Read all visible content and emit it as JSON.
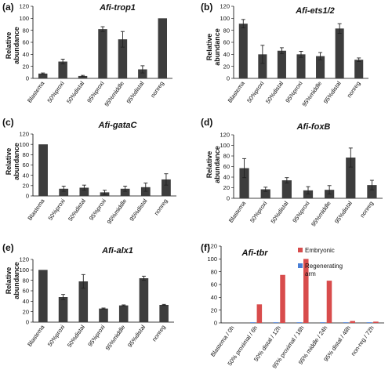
{
  "colors": {
    "bar": "#3d3d3d",
    "embryonic": "#d84c4c",
    "regenerating": "#4a7fd6"
  },
  "chart_data": [
    {
      "tag": "(a)",
      "title": "Afi-trop1",
      "type": "bar",
      "ylabel": "Relative abundance",
      "ylim": [
        0,
        120
      ],
      "yticks": [
        0,
        20,
        40,
        60,
        80,
        100,
        120
      ],
      "categories": [
        "Blastema",
        "50%proxi",
        "50%distal",
        "95%proxi",
        "95%middle",
        "95%distal",
        "nonreg"
      ],
      "series": [
        {
          "values": [
            8,
            28,
            4,
            82,
            65,
            15,
            100
          ],
          "errors": [
            1,
            4,
            1,
            4,
            13,
            6,
            0
          ]
        }
      ]
    },
    {
      "tag": "(b)",
      "title": "Afi-ets1/2",
      "type": "bar",
      "ylabel": "Relative abundance",
      "ylim": [
        0,
        120
      ],
      "yticks": [
        0,
        20,
        40,
        60,
        80,
        100,
        120
      ],
      "categories": [
        "Blastema",
        "50%proxi",
        "50%distal",
        "95%proxi",
        "95%middle",
        "95%distal",
        "nonreg"
      ],
      "series": [
        {
          "values": [
            91,
            40,
            46,
            40,
            37,
            83,
            31
          ],
          "errors": [
            7,
            15,
            5,
            5,
            6,
            8,
            3
          ]
        }
      ]
    },
    {
      "tag": "(c)",
      "title": "Afi-gataC",
      "type": "bar",
      "ylabel": "Relative abundance",
      "ylim": [
        0,
        120
      ],
      "yticks": [
        0,
        20,
        40,
        60,
        80,
        100,
        120
      ],
      "categories": [
        "Blastema",
        "50%proxi",
        "50%distal",
        "95%proxi",
        "95%middle",
        "95%distal",
        "nonreg"
      ],
      "series": [
        {
          "values": [
            100,
            14,
            16,
            7,
            14,
            17,
            32
          ],
          "errors": [
            0,
            5,
            5,
            4,
            5,
            8,
            11
          ]
        }
      ]
    },
    {
      "tag": "(d)",
      "title": "Afi-foxB",
      "type": "bar",
      "ylabel": "Relative abundance",
      "ylim": [
        0,
        120
      ],
      "yticks": [
        0,
        20,
        40,
        60,
        80,
        100,
        120
      ],
      "categories": [
        "Blastema",
        "50%proxi",
        "50%distal",
        "95%proxi",
        "95%middle",
        "95%distal",
        "nonreg"
      ],
      "series": [
        {
          "values": [
            57,
            17,
            34,
            15,
            16,
            77,
            25
          ],
          "errors": [
            18,
            4,
            5,
            7,
            8,
            18,
            9
          ]
        }
      ]
    },
    {
      "tag": "(e)",
      "title": "Afi-alx1",
      "type": "bar",
      "ylabel": "Relative abundance",
      "ylim": [
        0,
        120
      ],
      "yticks": [
        0,
        20,
        40,
        60,
        80,
        100,
        120
      ],
      "categories": [
        "Blastema",
        "50%proxi",
        "50%distal",
        "95%proxi",
        "95%middle",
        "95%distal",
        "nonreg"
      ],
      "series": [
        {
          "values": [
            100,
            48,
            78,
            26,
            32,
            84,
            33
          ],
          "errors": [
            0,
            5,
            13,
            1,
            1,
            4,
            1
          ]
        }
      ]
    },
    {
      "tag": "(f)",
      "title": "Afi-tbr",
      "type": "bar",
      "ylabel": "",
      "ylim": [
        0,
        120
      ],
      "yticks": [
        0,
        20,
        40,
        60,
        80,
        100,
        120
      ],
      "categories": [
        "Blastema / 0h",
        "50% proximal / 6h",
        "50% distal / 12h",
        "95% proximal / 18h",
        "95% middle / 24h",
        "95% distal / 48h",
        "non-reg / 72h"
      ],
      "series": [
        {
          "name": "Embryonic",
          "values": [
            0,
            29,
            75,
            100,
            66,
            3,
            2
          ]
        },
        {
          "name": "Regenerating arm",
          "values": [
            0,
            1,
            1,
            1,
            1,
            1,
            1
          ]
        }
      ],
      "legend": [
        "Embryonic",
        "Regenerating arm"
      ]
    }
  ]
}
